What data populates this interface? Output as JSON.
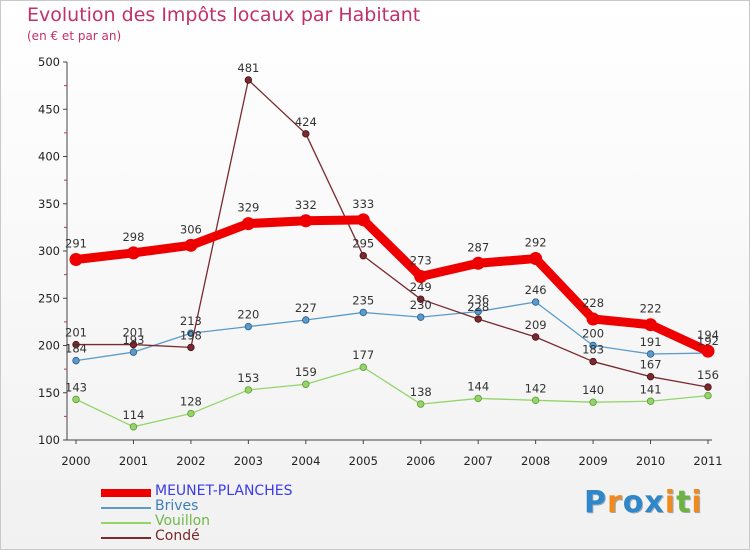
{
  "title": "Evolution des Impôts locaux par Habitant",
  "subtitle": "(en € et par an)",
  "logo": {
    "text": "Proxiti",
    "letters": [
      {
        "ch": "P",
        "color": "#2f86c8"
      },
      {
        "ch": "r",
        "color": "#f08a1c"
      },
      {
        "ch": "o",
        "color": "#2f86c8"
      },
      {
        "ch": "x",
        "color": "#2f86c8"
      },
      {
        "ch": "i",
        "color": "#f08a1c"
      },
      {
        "ch": "t",
        "color": "#6db33f"
      },
      {
        "ch": "i",
        "color": "#f08a1c"
      }
    ]
  },
  "chart_data": {
    "type": "line",
    "title": "Evolution des Impôts locaux par Habitant",
    "subtitle": "(en € et par an)",
    "xlabel": "",
    "ylabel": "",
    "categories": [
      "2000",
      "2001",
      "2002",
      "2003",
      "2004",
      "2005",
      "2006",
      "2007",
      "2008",
      "2009",
      "2010",
      "2011"
    ],
    "ylim": [
      100,
      500
    ],
    "yticks": [
      100,
      150,
      200,
      250,
      300,
      350,
      400,
      450,
      500
    ],
    "grid": false,
    "legend": "bottom-left",
    "series": [
      {
        "name": "MEUNET-PLANCHES",
        "color": "#ee0000",
        "values": [
          291,
          298,
          306,
          329,
          332,
          333,
          273,
          287,
          292,
          228,
          222,
          194
        ],
        "labels": [
          "291",
          "298",
          "306",
          "329",
          "332",
          "333",
          "273",
          "287",
          "292",
          "228",
          "222",
          "194"
        ]
      },
      {
        "name": "Brives",
        "color": "#5b9ac9",
        "values": [
          184,
          193,
          213,
          220,
          227,
          235,
          230,
          236,
          246,
          200,
          191,
          192
        ],
        "labels": [
          "184",
          "193",
          "213",
          "220",
          "227",
          "235",
          "230",
          "236",
          "246",
          "200",
          "191",
          "192"
        ]
      },
      {
        "name": "Vouillon",
        "color": "#94d46a",
        "values": [
          143,
          114,
          128,
          153,
          159,
          177,
          138,
          144,
          142,
          140,
          141,
          147
        ],
        "labels": [
          "143",
          "114",
          "128",
          "153",
          "159",
          "177",
          "138",
          "144",
          "142",
          "140",
          "141",
          ""
        ]
      },
      {
        "name": "Condé",
        "color": "#7a2a2e",
        "values": [
          201,
          201,
          198,
          481,
          424,
          295,
          249,
          228,
          209,
          183,
          167,
          156
        ],
        "labels": [
          "201",
          "201",
          "198",
          "481",
          "424",
          "295",
          "249",
          "228",
          "209",
          "183",
          "167",
          "156"
        ]
      }
    ]
  }
}
